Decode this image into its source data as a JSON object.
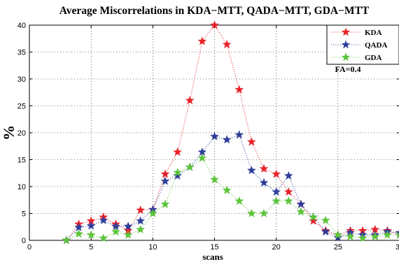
{
  "chart_data": {
    "type": "line",
    "title": "Average Miscorrelations in KDA−MTT, QADA−MTT, GDA−MTT",
    "xlabel": "scans",
    "ylabel": "%",
    "xlim": [
      0,
      30
    ],
    "ylim": [
      0,
      40
    ],
    "xticks": [
      0,
      5,
      10,
      15,
      20,
      25,
      30
    ],
    "yticks": [
      0,
      5,
      10,
      15,
      20,
      25,
      30,
      35,
      40
    ],
    "xtick_labels": [
      "0",
      "5",
      "10",
      "15",
      "20",
      "25",
      "30"
    ],
    "ytick_labels": [
      "0",
      "5",
      "10",
      "15",
      "20",
      "25",
      "30",
      "35",
      "40"
    ],
    "grid": true,
    "legend_position": "top-right",
    "annotation": "FA=0.4",
    "series": [
      {
        "name": "KDA",
        "color": "#e8222a",
        "marker": "star",
        "line_style": "dotted",
        "x": [
          3,
          4,
          5,
          6,
          7,
          8,
          9,
          10,
          11,
          12,
          13,
          14,
          15,
          16,
          17,
          18,
          19,
          20,
          21,
          22,
          23,
          24,
          25,
          26,
          27,
          28,
          29,
          30
        ],
        "y": [
          0,
          3,
          3.6,
          4.3,
          3,
          1.8,
          5.6,
          5.7,
          12.3,
          16.4,
          26,
          37,
          40,
          36.4,
          28,
          18.3,
          13.3,
          12.3,
          9,
          6.7,
          3.6,
          1.8,
          1,
          1.8,
          1.8,
          2,
          1.8,
          1
        ]
      },
      {
        "name": "QADA",
        "color": "#2e3e9b",
        "marker": "star",
        "line_style": "dotted",
        "x": [
          3,
          4,
          5,
          6,
          7,
          8,
          9,
          10,
          11,
          12,
          13,
          14,
          15,
          16,
          17,
          18,
          19,
          20,
          21,
          22,
          23,
          24,
          25,
          26,
          27,
          28,
          29,
          30
        ],
        "y": [
          0,
          2.4,
          2.7,
          3.7,
          2.6,
          2.6,
          3.6,
          5.7,
          11,
          12,
          13.6,
          16.4,
          19.3,
          18.7,
          19.6,
          13,
          10.7,
          9,
          12,
          6.7,
          4.3,
          1.6,
          0.5,
          1.4,
          1,
          1,
          1.6,
          1.4
        ]
      },
      {
        "name": "GDA",
        "color": "#5cc43a",
        "marker": "star",
        "line_style": "dotted",
        "x": [
          3,
          4,
          5,
          6,
          7,
          8,
          9,
          10,
          11,
          12,
          13,
          14,
          15,
          16,
          17,
          18,
          19,
          20,
          21,
          22,
          23,
          24,
          25,
          26,
          27,
          28,
          29,
          30
        ],
        "y": [
          0,
          1.2,
          1,
          0.4,
          1.6,
          1,
          2,
          5,
          6.7,
          12.6,
          13.6,
          15.3,
          11.3,
          9.3,
          7.3,
          5,
          5,
          7.3,
          7.3,
          5.3,
          4.3,
          3.7,
          1,
          0.7,
          0.4,
          0.7,
          1,
          1
        ]
      }
    ]
  }
}
